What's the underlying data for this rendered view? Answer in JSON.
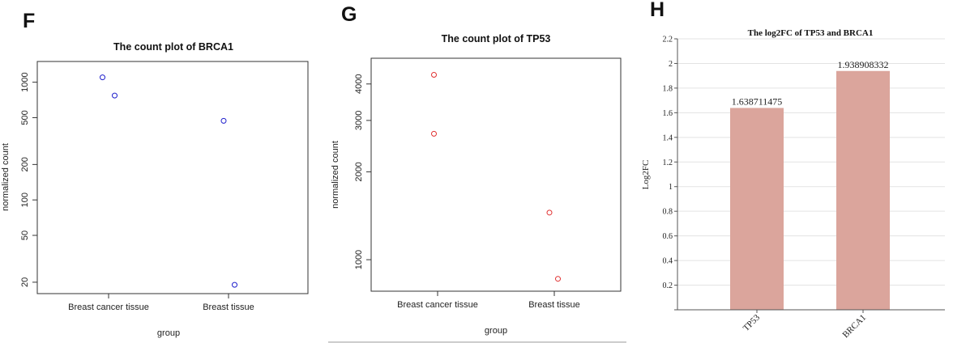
{
  "panels": {
    "f": {
      "letter": "F"
    },
    "g": {
      "letter": "G"
    },
    "h": {
      "letter": "H"
    }
  },
  "chart_data": [
    {
      "type": "scatter",
      "title": "The count plot of BRCA1",
      "xlabel": "group",
      "ylabel": "normalized count",
      "yscale": "log",
      "categories": [
        "Breast cancer tissue",
        "Breast tissue"
      ],
      "yticks": [
        20,
        50,
        100,
        200,
        500,
        1000
      ],
      "ylim": [
        16,
        1500
      ],
      "points": [
        {
          "category": "Breast cancer tissue",
          "jitter": -0.05,
          "y": 1100
        },
        {
          "category": "Breast cancer tissue",
          "jitter": 0.05,
          "y": 770
        },
        {
          "category": "Breast tissue",
          "jitter": -0.04,
          "y": 470
        },
        {
          "category": "Breast tissue",
          "jitter": 0.05,
          "y": 19
        }
      ],
      "color": "#1f1fcc"
    },
    {
      "type": "scatter",
      "title": "The count plot of TP53",
      "xlabel": "group",
      "ylabel": "normalized count",
      "yscale": "log",
      "categories": [
        "Breast cancer tissue",
        "Breast tissue"
      ],
      "yticks": [
        1000,
        2000,
        3000,
        4000
      ],
      "ylim": [
        780,
        4900
      ],
      "points": [
        {
          "category": "Breast cancer tissue",
          "jitter": -0.03,
          "y": 4300
        },
        {
          "category": "Breast cancer tissue",
          "jitter": -0.03,
          "y": 2700
        },
        {
          "category": "Breast tissue",
          "jitter": -0.04,
          "y": 1450
        },
        {
          "category": "Breast tissue",
          "jitter": 0.03,
          "y": 860
        }
      ],
      "color": "#e03030"
    },
    {
      "type": "bar",
      "title": "The log2FC of TP53 and BRCA1",
      "xlabel": "",
      "ylabel": "Log2FC",
      "categories": [
        "TP53",
        "BRCA1"
      ],
      "values": [
        1.638711475,
        1.938908332
      ],
      "value_labels": [
        "1.638711475",
        "1.938908332"
      ],
      "ylim": [
        0,
        2.2
      ],
      "yticks": [
        "0.2",
        "0.4",
        "0.6",
        "0.8",
        "1",
        "1.2",
        "1.4",
        "1.6",
        "1.8",
        "2",
        "2.2"
      ],
      "grid": true,
      "color": "#dba59c"
    }
  ]
}
